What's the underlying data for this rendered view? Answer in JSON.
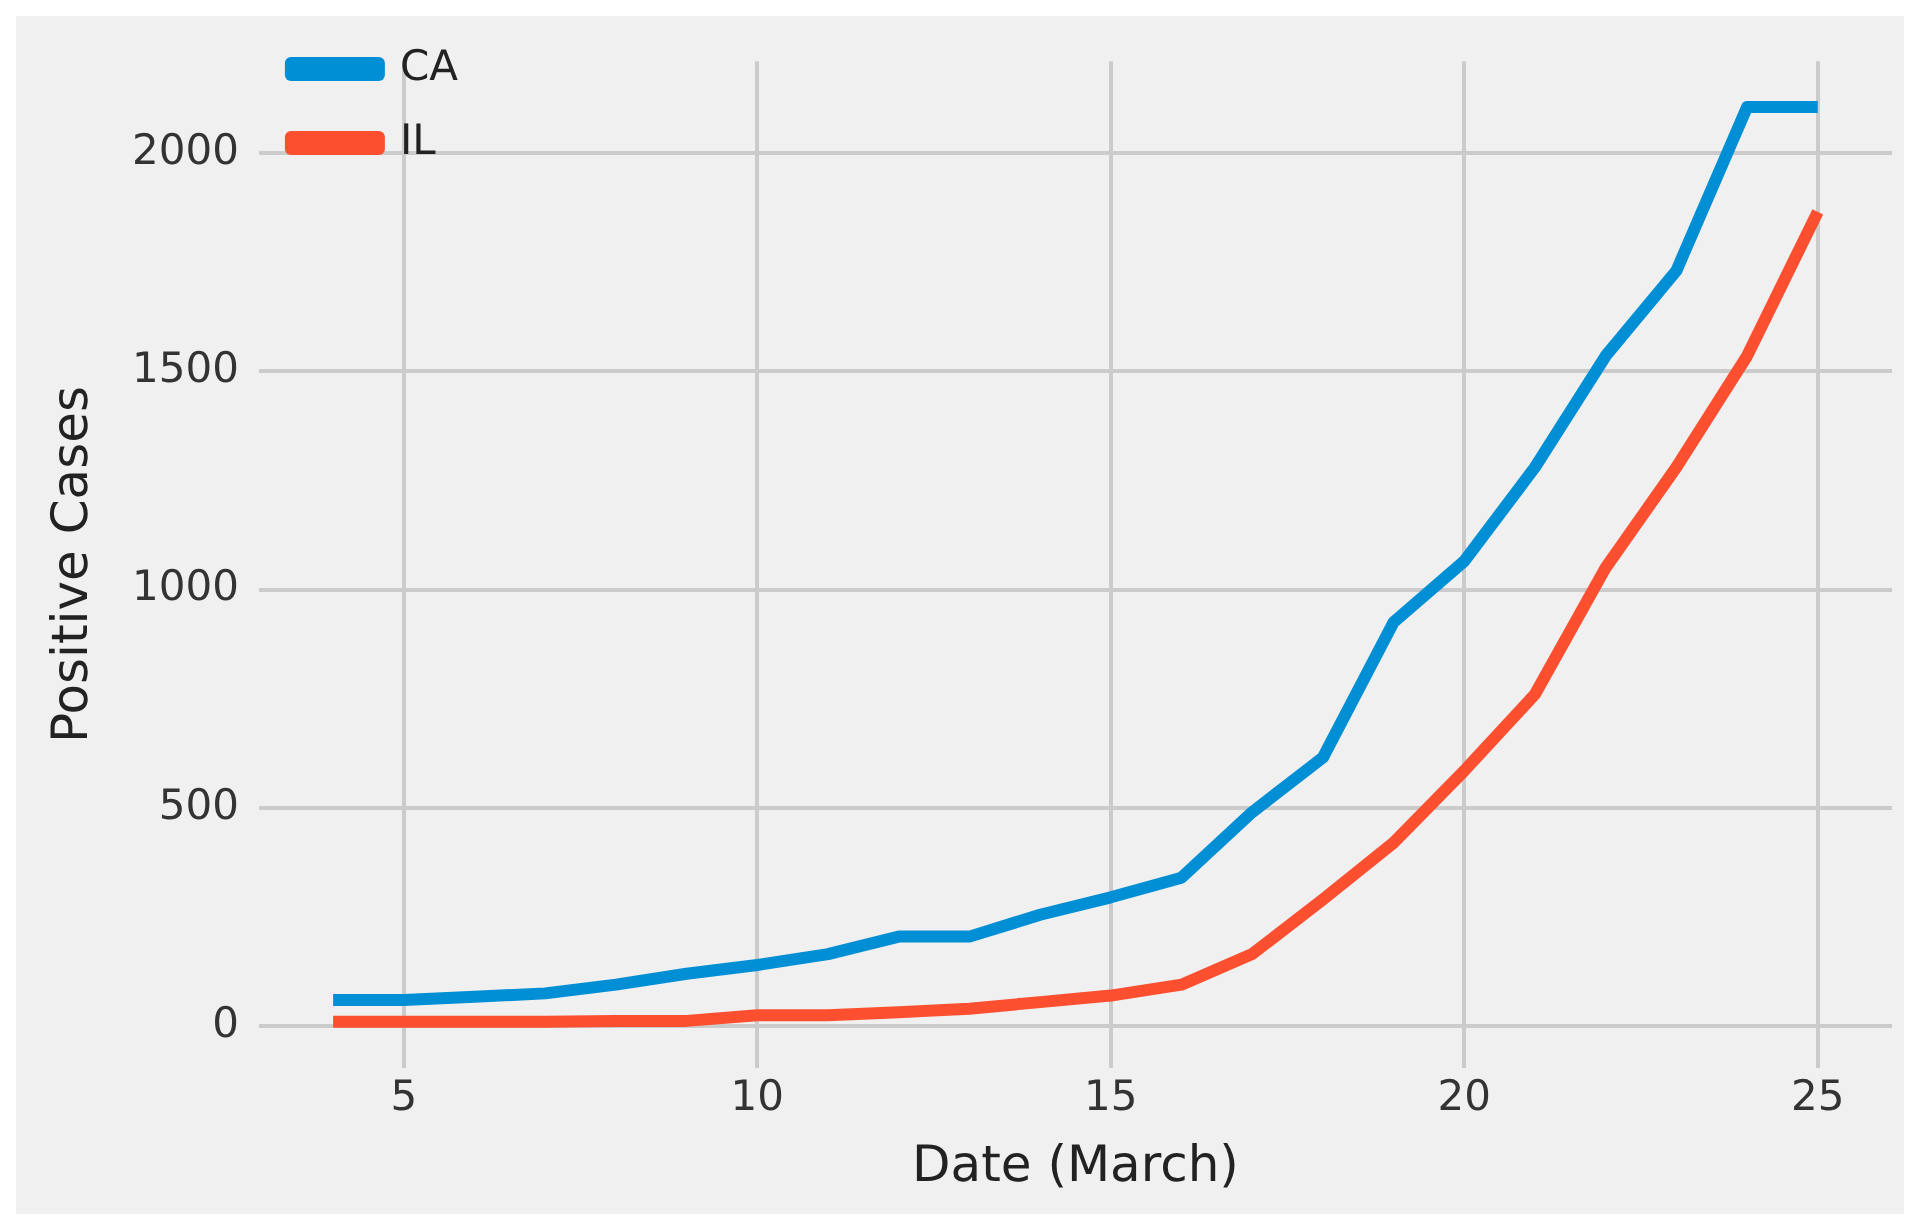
{
  "chart_data": {
    "type": "line",
    "xlabel": "Date (March)",
    "ylabel": "Positive Cases",
    "x": [
      4,
      5,
      6,
      7,
      8,
      9,
      10,
      11,
      12,
      13,
      14,
      15,
      16,
      17,
      18,
      19,
      20,
      21,
      22,
      23,
      24,
      25
    ],
    "series": [
      {
        "name": "CA",
        "color": "#008fd5",
        "values": [
          60,
          60,
          67,
          75,
          95,
          120,
          140,
          165,
          205,
          205,
          255,
          295,
          340,
          490,
          615,
          925,
          1065,
          1280,
          1535,
          1730,
          2105,
          2105
        ]
      },
      {
        "name": "IL",
        "color": "#fc4f30",
        "values": [
          10,
          10,
          10,
          10,
          12,
          12,
          25,
          25,
          32,
          40,
          55,
          70,
          95,
          165,
          290,
          420,
          585,
          760,
          1050,
          1280,
          1535,
          1865
        ]
      }
    ],
    "xlim": [
      2.95,
      26.05
    ],
    "xticks": [
      5,
      10,
      15,
      20,
      25
    ],
    "ylim": [
      -95,
      2210
    ],
    "yticks": [
      0,
      500,
      1000,
      1500,
      2000
    ],
    "grid": true,
    "legend": "top left",
    "line_style": "solid",
    "marker": "none"
  }
}
